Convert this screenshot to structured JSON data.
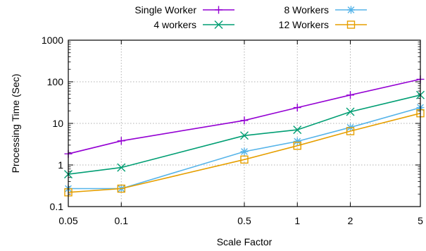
{
  "chart_data": {
    "type": "line",
    "title": "",
    "xlabel": "Scale Factor",
    "ylabel": "Processing Time (Sec)",
    "x_scale": "log",
    "y_scale": "log",
    "xlim": [
      0.05,
      5
    ],
    "ylim": [
      0.1,
      1000
    ],
    "x": [
      0.05,
      0.1,
      0.5,
      1,
      2,
      5
    ],
    "x_tick_labels": [
      "0.05",
      "0.1",
      "0.5",
      "1",
      "2",
      "5"
    ],
    "y_ticks": [
      0.1,
      1,
      10,
      100,
      1000
    ],
    "y_tick_labels": [
      "0.1",
      "1",
      "10",
      "100",
      "1000"
    ],
    "grid": true,
    "legend_position": "top",
    "series": [
      {
        "name": "Single Worker",
        "values": [
          1.85,
          3.8,
          11.8,
          24,
          48,
          115
        ],
        "color": "#9400d3",
        "marker": "plus"
      },
      {
        "name": "4 workers",
        "values": [
          0.6,
          0.87,
          5.1,
          7,
          19,
          48
        ],
        "color": "#009e73",
        "marker": "cross"
      },
      {
        "name": "8 Workers",
        "values": [
          0.27,
          0.27,
          2.1,
          3.7,
          8,
          24
        ],
        "color": "#56b4e9",
        "marker": "star"
      },
      {
        "name": "12 Workers",
        "values": [
          0.22,
          0.27,
          1.35,
          2.9,
          6.5,
          17.5
        ],
        "color": "#e69f00",
        "marker": "square"
      }
    ]
  }
}
